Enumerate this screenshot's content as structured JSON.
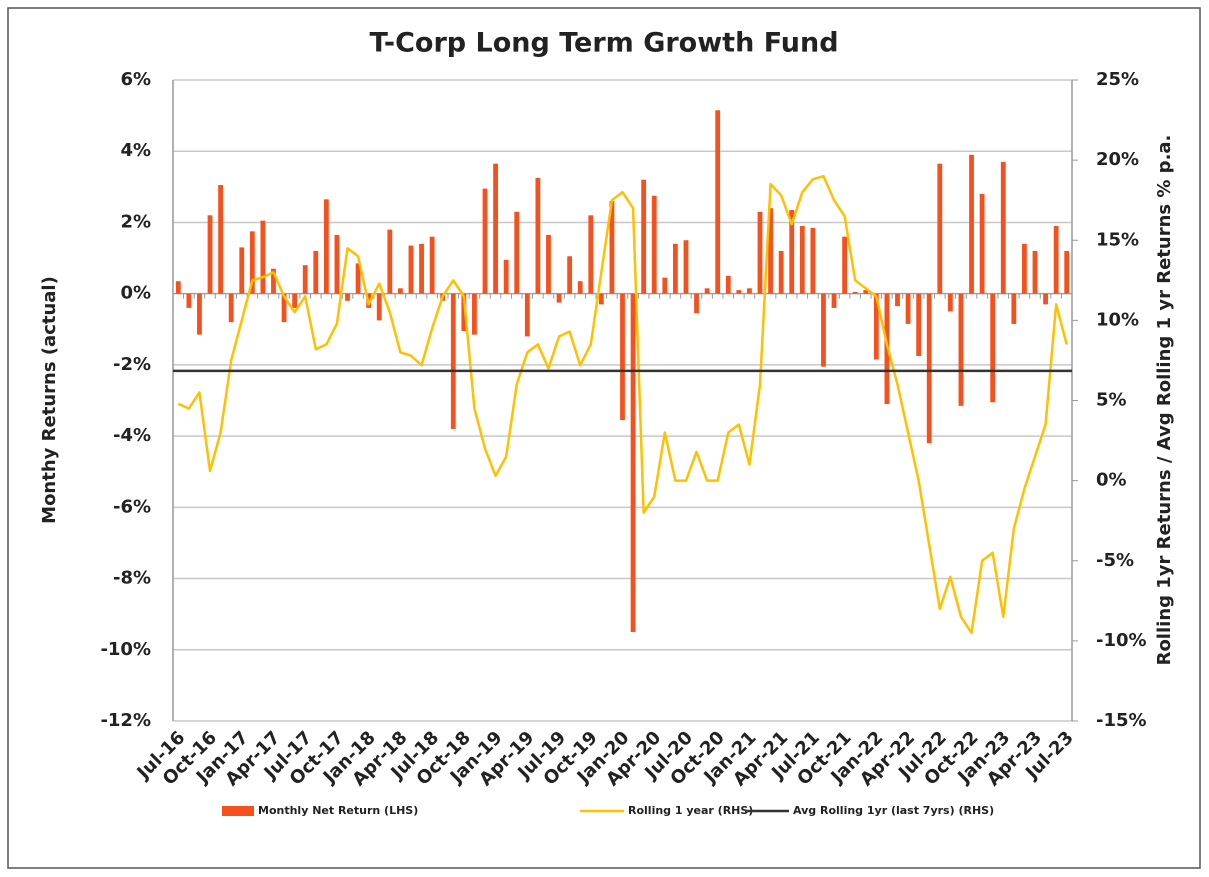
{
  "chart_data": {
    "type": "bar_line",
    "title": "T-Corp Long Term Growth Fund",
    "ylabel": "Monthy Returns (actual)",
    "y2label": "Rolling 1yr Returns / Avg Rolling 1 yr Returns % p.a.",
    "categories": [
      "Jul-16",
      null,
      null,
      "Oct-16",
      null,
      null,
      "Jan-17",
      null,
      null,
      "Apr-17",
      null,
      null,
      "Jul-17",
      null,
      null,
      "Oct-17",
      null,
      null,
      "Jan-18",
      null,
      null,
      "Apr-18",
      null,
      null,
      "Jul-18",
      null,
      null,
      "Oct-18",
      null,
      null,
      "Jan-19",
      null,
      null,
      "Apr-19",
      null,
      null,
      "Jul-19",
      null,
      null,
      "Oct-19",
      null,
      null,
      "Jan-20",
      null,
      null,
      "Apr-20",
      null,
      null,
      "Jul-20",
      null,
      null,
      "Oct-20",
      null,
      null,
      "Jan-21",
      null,
      null,
      "Apr-21",
      null,
      null,
      "Jul-21",
      null,
      null,
      "Oct-21",
      null,
      null,
      "Jan-22",
      null,
      null,
      "Apr-22",
      null,
      null,
      "Jul-22",
      null,
      null,
      "Oct-22",
      null,
      null,
      "Jan-23",
      null,
      null,
      "Apr-23",
      null,
      null,
      "Jul-23"
    ],
    "series": [
      {
        "name": "Monthly Net Return (LHS)",
        "color": "#f4511e",
        "axis": "y",
        "values": [
          0.35,
          -0.4,
          -1.15,
          2.2,
          3.05,
          -0.8,
          1.3,
          1.75,
          2.05,
          0.7,
          -0.8,
          -0.4,
          0.8,
          1.2,
          2.65,
          1.65,
          -0.2,
          0.85,
          -0.4,
          -0.75,
          1.8,
          0.15,
          1.35,
          1.4,
          1.6,
          -0.2,
          -3.8,
          -1.05,
          -1.15,
          2.95,
          3.65,
          0.95,
          2.3,
          -1.2,
          3.25,
          1.65,
          -0.25,
          1.05,
          0.35,
          2.2,
          -0.3,
          2.6,
          -3.55,
          -9.5,
          3.2,
          2.75,
          0.45,
          1.4,
          1.5,
          -0.55,
          0.15,
          5.15,
          0.5,
          0.1,
          0.15,
          2.3,
          2.4,
          1.2,
          2.35,
          1.9,
          1.85,
          -2.05,
          -0.4,
          1.6,
          0.05,
          0.1,
          -1.85,
          -3.1,
          -0.35,
          -0.85,
          -1.75,
          -4.2,
          3.65,
          -0.5,
          -3.15,
          3.9,
          2.8,
          -3.05,
          3.7,
          -0.85,
          1.4,
          1.2,
          -0.3,
          1.9,
          1.2
        ]
      },
      {
        "name": "Rolling 1 year (RHS)",
        "color": "#ffc000",
        "axis": "y2",
        "values": [
          4.8,
          4.5,
          5.5,
          0.6,
          3.0,
          7.5,
          10.0,
          12.5,
          12.7,
          13.0,
          11.5,
          10.5,
          11.5,
          8.2,
          8.5,
          9.8,
          14.5,
          14.0,
          11.0,
          12.3,
          10.5,
          8.0,
          7.8,
          7.2,
          9.5,
          11.5,
          12.5,
          11.5,
          4.5,
          2.0,
          0.3,
          1.5,
          6.0,
          8.0,
          8.5,
          7.0,
          9.0,
          9.3,
          7.2,
          8.5,
          13.0,
          17.5,
          18.0,
          17.0,
          -2.0,
          -1.0,
          3.0,
          0.0,
          0.0,
          1.8,
          0.0,
          0.0,
          3.0,
          3.5,
          1.0,
          6.0,
          18.5,
          17.8,
          16.0,
          18.0,
          18.8,
          19.0,
          17.5,
          16.5,
          12.5,
          12.0,
          11.5,
          8.5,
          6.0,
          3.0,
          0.0,
          -4.0,
          -8.0,
          -6.0,
          -8.5,
          -9.5,
          -5.0,
          -4.5,
          -8.5,
          -3.0,
          -0.5,
          1.5,
          3.5,
          11.0,
          8.5
        ]
      },
      {
        "name": "Avg Rolling 1yr (last 7yrs) (RHS)",
        "color": "#333333",
        "axis": "y2",
        "value": 6.85
      }
    ],
    "ylim": [
      -12,
      6
    ],
    "yticks": [
      {
        "value": -12,
        "label": "-12%"
      },
      {
        "value": -10,
        "label": "-10%"
      },
      {
        "value": -8,
        "label": "-8%"
      },
      {
        "value": -6,
        "label": "-6%"
      },
      {
        "value": -4,
        "label": "-4%"
      },
      {
        "value": -2,
        "label": "-2%"
      },
      {
        "value": 0,
        "label": "0%"
      },
      {
        "value": 2,
        "label": "2%"
      },
      {
        "value": 4,
        "label": "4%"
      },
      {
        "value": 6,
        "label": "6%"
      }
    ],
    "y2lim": [
      -15,
      25
    ],
    "y2ticks": [
      {
        "value": -15,
        "label": "-15%"
      },
      {
        "value": -10,
        "label": "-10%"
      },
      {
        "value": -5,
        "label": "-5%"
      },
      {
        "value": 0,
        "label": "0%"
      },
      {
        "value": 5,
        "label": "5%"
      },
      {
        "value": 10,
        "label": "10%"
      },
      {
        "value": 15,
        "label": "15%"
      },
      {
        "value": 20,
        "label": "20%"
      },
      {
        "value": 25,
        "label": "25%"
      }
    ],
    "grid": true,
    "legend": "bottom"
  }
}
